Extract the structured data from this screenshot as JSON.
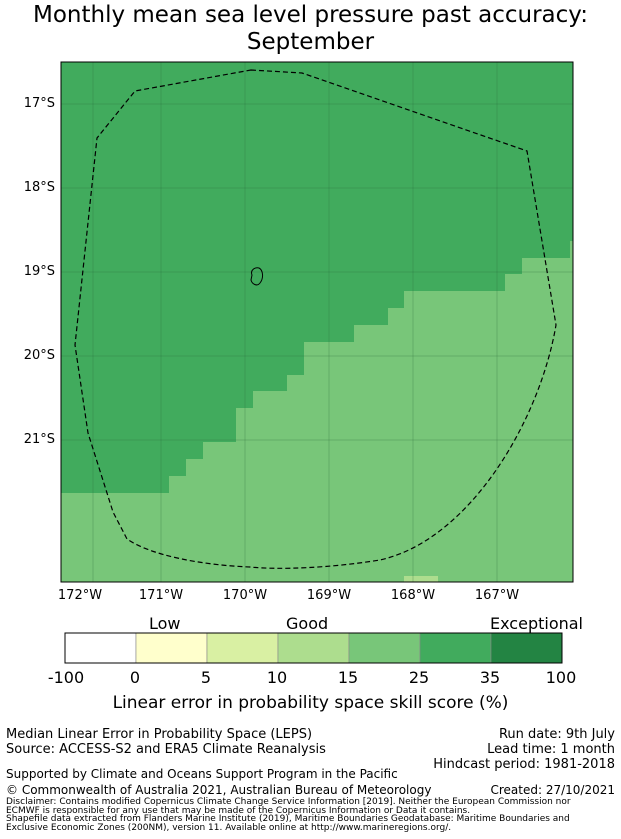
{
  "title": {
    "line1": "Monthly mean sea level pressure past accuracy:",
    "line2": "September"
  },
  "map": {
    "lat_labels": [
      "17°S",
      "18°S",
      "19°S",
      "20°S",
      "21°S"
    ],
    "lon_labels": [
      "172°W",
      "171°W",
      "170°W",
      "169°W",
      "168°W",
      "167°W"
    ],
    "colors": {
      "good_15_25": "#78c679",
      "good_25_35": "#41ab5d"
    }
  },
  "colorbar": {
    "category_labels": [
      "Low",
      "Good",
      "Exceptional"
    ],
    "ticks": [
      "-100",
      "0",
      "5",
      "10",
      "15",
      "25",
      "35",
      "100"
    ],
    "colors": [
      "#ffffff",
      "#ffffcc",
      "#d9f0a3",
      "#addd8e",
      "#78c679",
      "#41ab5d",
      "#238443"
    ],
    "title": "Linear error in probability space skill score (%)"
  },
  "footer": {
    "left1": "Median Linear Error in Probability Space (LEPS)",
    "left2": "Source: ACCESS-S2 and ERA5 Climate Reanalysis",
    "right1": "Run date: 9th July",
    "right2": "Lead time: 1 month",
    "right3": "Hindcast period: 1981-2018",
    "support": "Supported by Climate and Oceans Support Program in the Pacific",
    "copyright": "© Commonwealth of Australia 2021, Australian Bureau of Meteorology",
    "created": "Created: 27/10/2021",
    "disclaimer1": "Disclaimer: Contains modified Copernicus Climate Change Service Information [2019]. Neither the European Commission nor",
    "disclaimer2": "ECMWF is responsible for any use that may be made of the Copernicus Information or Data it contains.",
    "shapefile1": "Shapefile data extracted from Flanders Marine Institute (2019), Maritime Boundaries Geodatabase: Maritime Boundaries and",
    "shapefile2": "Exclusive Economic Zones (200NM), version 11. Available online at http://www.marineregions.org/."
  }
}
